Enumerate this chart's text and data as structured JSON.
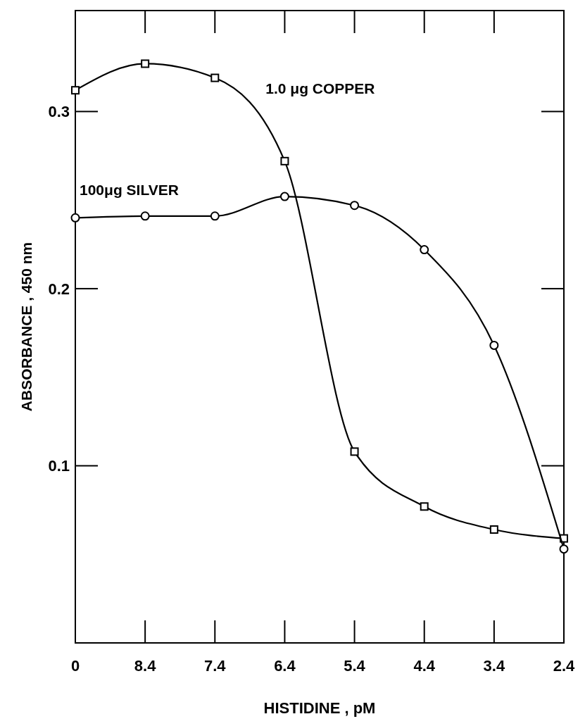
{
  "chart_data": {
    "type": "line",
    "xlabel": "HISTIDINE , pM",
    "ylabel": "ABSORBANCE , 450 nm",
    "categories": [
      "0",
      "8.4",
      "7.4",
      "6.4",
      "5.4",
      "4.4",
      "3.4",
      "2.4"
    ],
    "ylim": [
      0,
      0.357
    ],
    "yticks": [
      0.1,
      0.2,
      0.3
    ],
    "grid": false,
    "series": [
      {
        "name": "1.0 μg COPPER",
        "color": "#000000",
        "marker": "square",
        "values": [
          0.312,
          0.327,
          0.319,
          0.272,
          0.108,
          0.077,
          0.064,
          0.059
        ]
      },
      {
        "name": "100μg SILVER",
        "color": "#000000",
        "marker": "circle",
        "values": [
          0.24,
          0.241,
          0.241,
          0.252,
          0.247,
          0.222,
          0.168,
          0.053
        ]
      }
    ]
  }
}
